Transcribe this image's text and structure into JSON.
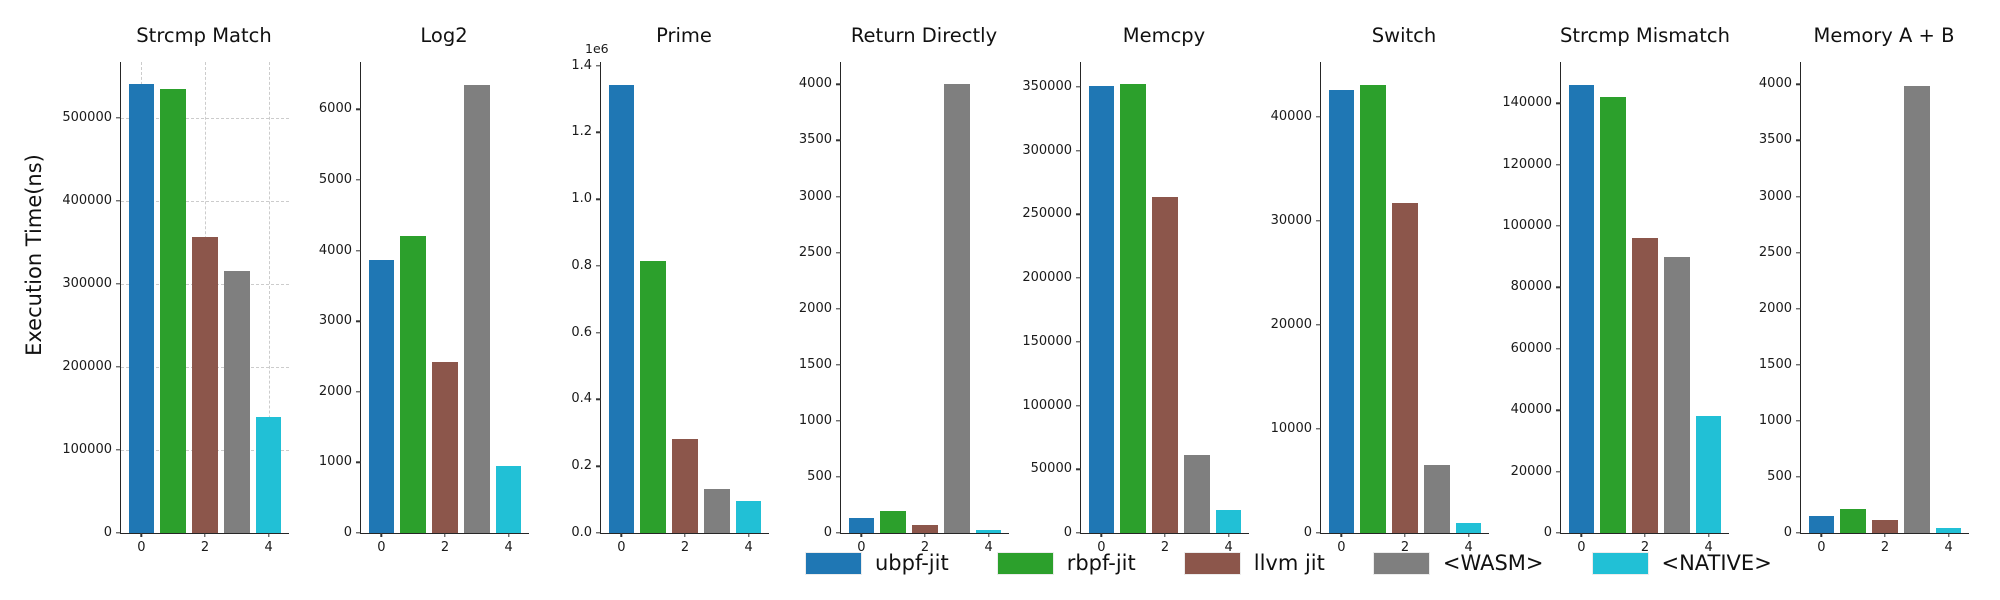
{
  "chart_data": {
    "type": "bar",
    "ylabel": "Execution Time(ns)",
    "legend_position": "bottom",
    "series_names": [
      "ubpf-jit",
      "rbpf-jit",
      "llvm jit",
      "<WASM>",
      "<NATIVE>"
    ],
    "colors": [
      "#1f77b4",
      "#2ca02c",
      "#8c564b",
      "#7f7f7f",
      "#21c0d6"
    ],
    "x_positions": [
      0,
      1,
      2,
      3,
      4
    ],
    "bar_width": 0.8,
    "xlim": [
      -0.64,
      4.64
    ],
    "xtick_values": [
      0,
      2,
      4
    ],
    "xtick_labels": [
      "0",
      "2",
      "4"
    ],
    "subplots": [
      {
        "title": "Strcmp Match",
        "values": [
          540000,
          534000,
          356000,
          315000,
          140000
        ],
        "ytick_values": [
          0,
          100000,
          200000,
          300000,
          400000,
          500000
        ],
        "ytick_labels": [
          "0",
          "100000",
          "200000",
          "300000",
          "400000",
          "500000"
        ],
        "ylim": [
          0,
          567000
        ],
        "grid": true
      },
      {
        "title": "Log2",
        "values": [
          3860,
          4200,
          2420,
          6350,
          950
        ],
        "ytick_values": [
          0,
          1000,
          2000,
          3000,
          4000,
          5000,
          6000
        ],
        "ytick_labels": [
          "0",
          "1000",
          "2000",
          "3000",
          "4000",
          "5000",
          "6000"
        ],
        "ylim": [
          0,
          6670
        ],
        "grid": false
      },
      {
        "title": "Prime",
        "values": [
          1343000,
          815000,
          282000,
          133000,
          96000
        ],
        "ytick_values": [
          0,
          200000,
          400000,
          600000,
          800000,
          1000000,
          1200000,
          1400000
        ],
        "ytick_labels": [
          "0.0",
          "0.2",
          "0.4",
          "0.6",
          "0.8",
          "1.0",
          "1.2",
          "1.4"
        ],
        "ylim": [
          0,
          1411000
        ],
        "offset_text": "1e6",
        "grid": false
      },
      {
        "title": "Return Directly",
        "values": [
          130,
          200,
          75,
          4000,
          30
        ],
        "ytick_values": [
          0,
          500,
          1000,
          1500,
          2000,
          2500,
          3000,
          3500,
          4000
        ],
        "ytick_labels": [
          "0",
          "500",
          "1000",
          "1500",
          "2000",
          "2500",
          "3000",
          "3500",
          "4000"
        ],
        "ylim": [
          0,
          4200
        ],
        "grid": false
      },
      {
        "title": "Memcpy",
        "values": [
          351000,
          352000,
          263500,
          61000,
          18200
        ],
        "ytick_values": [
          0,
          50000,
          100000,
          150000,
          200000,
          250000,
          300000,
          350000
        ],
        "ytick_labels": [
          "0",
          "50000",
          "100000",
          "150000",
          "200000",
          "250000",
          "300000",
          "350000"
        ],
        "ylim": [
          0,
          369500
        ],
        "grid": false
      },
      {
        "title": "Switch",
        "values": [
          42600,
          43100,
          31700,
          6500,
          1000
        ],
        "ytick_values": [
          0,
          10000,
          20000,
          30000,
          40000
        ],
        "ytick_labels": [
          "0",
          "10000",
          "20000",
          "30000",
          "40000"
        ],
        "ylim": [
          0,
          45300
        ],
        "grid": false
      },
      {
        "title": "Strcmp Mismatch",
        "values": [
          146000,
          142000,
          96000,
          90000,
          38000
        ],
        "ytick_values": [
          0,
          20000,
          40000,
          60000,
          80000,
          100000,
          120000,
          140000
        ],
        "ytick_labels": [
          "0",
          "20000",
          "40000",
          "60000",
          "80000",
          "100000",
          "120000",
          "140000"
        ],
        "ylim": [
          0,
          153400
        ],
        "grid": false
      },
      {
        "title": "Memory A + B",
        "values": [
          150,
          210,
          120,
          3990,
          45
        ],
        "ytick_values": [
          0,
          500,
          1000,
          1500,
          2000,
          2500,
          3000,
          3500,
          4000
        ],
        "ytick_labels": [
          "0",
          "500",
          "1000",
          "1500",
          "2000",
          "2500",
          "3000",
          "3500",
          "4000"
        ],
        "ylim": [
          0,
          4200
        ],
        "grid": false
      }
    ]
  }
}
